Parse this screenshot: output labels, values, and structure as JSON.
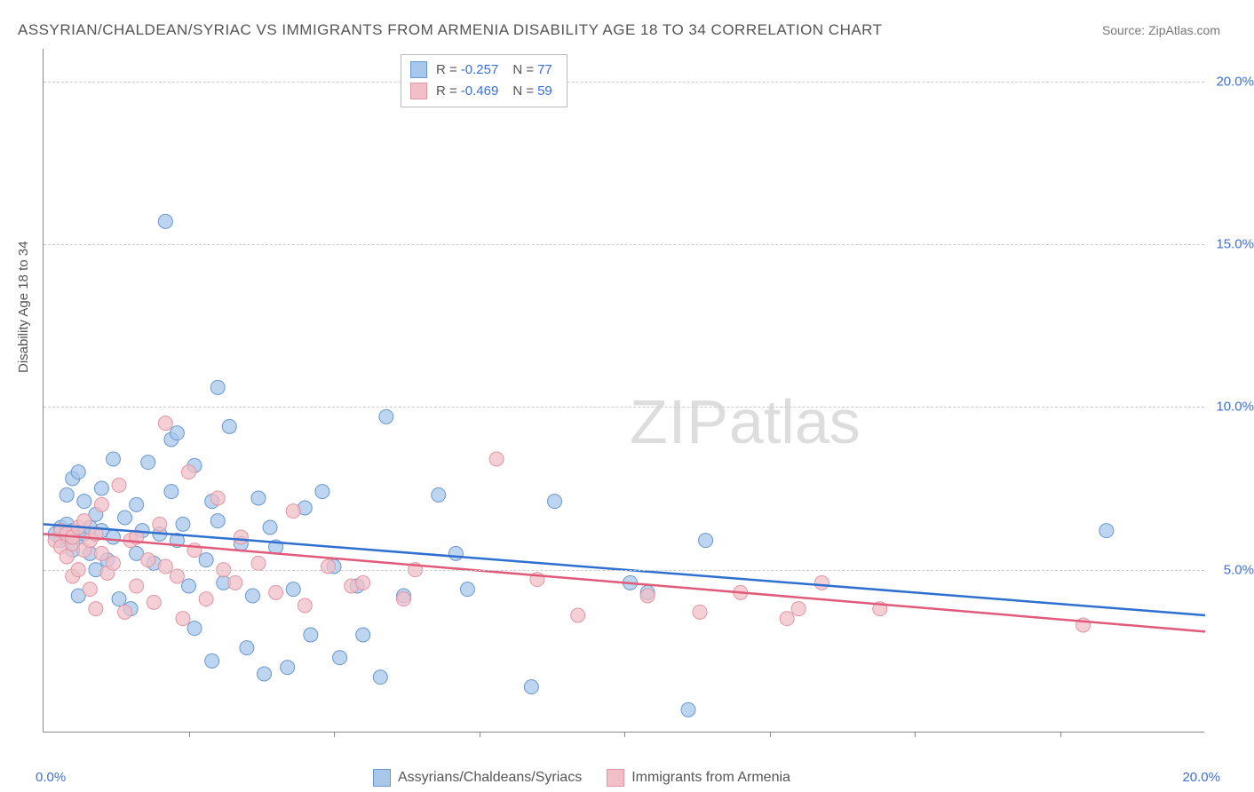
{
  "title": "ASSYRIAN/CHALDEAN/SYRIAC VS IMMIGRANTS FROM ARMENIA DISABILITY AGE 18 TO 34 CORRELATION CHART",
  "source_label": "Source:",
  "source_value": "ZipAtlas.com",
  "y_axis_label": "Disability Age 18 to 34",
  "watermark_a": "ZIP",
  "watermark_b": "atlas",
  "x_axis": {
    "min": 0,
    "max": 20,
    "left_label": "0.0%",
    "right_label": "20.0%"
  },
  "y_axis": {
    "min": 0,
    "max": 21
  },
  "y_gridlines": [
    {
      "value": 5,
      "label": "5.0%"
    },
    {
      "value": 10,
      "label": "10.0%"
    },
    {
      "value": 15,
      "label": "15.0%"
    },
    {
      "value": 20,
      "label": "20.0%"
    }
  ],
  "x_ticks": [
    2.5,
    5,
    7.5,
    10,
    12.5,
    15,
    17.5
  ],
  "series": [
    {
      "id": "assyrians",
      "name": "Assyrians/Chaldeans/Syriacs",
      "fill": "#a7c7eb",
      "stroke": "#6a98cc",
      "line_color": "#2e6fd0",
      "r_value": "-0.257",
      "n_value": "77",
      "trend": {
        "x1": 0,
        "y1": 6.4,
        "x2": 20,
        "y2": 3.6
      },
      "points": [
        [
          0.2,
          6.1
        ],
        [
          0.3,
          6.3
        ],
        [
          0.3,
          5.9
        ],
        [
          0.4,
          6.0
        ],
        [
          0.4,
          6.4
        ],
        [
          0.4,
          7.3
        ],
        [
          0.5,
          6.2
        ],
        [
          0.5,
          5.6
        ],
        [
          0.5,
          7.8
        ],
        [
          0.6,
          8.0
        ],
        [
          0.6,
          6.0
        ],
        [
          0.6,
          4.2
        ],
        [
          0.7,
          6.1
        ],
        [
          0.7,
          7.1
        ],
        [
          0.8,
          5.5
        ],
        [
          0.8,
          6.3
        ],
        [
          0.9,
          6.7
        ],
        [
          0.9,
          5.0
        ],
        [
          1.0,
          6.2
        ],
        [
          1.0,
          7.5
        ],
        [
          1.1,
          5.3
        ],
        [
          1.2,
          6.0
        ],
        [
          1.2,
          8.4
        ],
        [
          1.3,
          4.1
        ],
        [
          1.4,
          6.6
        ],
        [
          1.5,
          3.8
        ],
        [
          1.6,
          5.5
        ],
        [
          1.6,
          7.0
        ],
        [
          1.7,
          6.2
        ],
        [
          1.8,
          8.3
        ],
        [
          1.9,
          5.2
        ],
        [
          2.0,
          6.1
        ],
        [
          2.1,
          15.7
        ],
        [
          2.2,
          9.0
        ],
        [
          2.2,
          7.4
        ],
        [
          2.3,
          5.9
        ],
        [
          2.3,
          9.2
        ],
        [
          2.4,
          6.4
        ],
        [
          2.5,
          4.5
        ],
        [
          2.6,
          3.2
        ],
        [
          2.6,
          8.2
        ],
        [
          2.8,
          5.3
        ],
        [
          2.9,
          7.1
        ],
        [
          2.9,
          2.2
        ],
        [
          3.0,
          6.5
        ],
        [
          3.0,
          10.6
        ],
        [
          3.1,
          4.6
        ],
        [
          3.2,
          9.4
        ],
        [
          3.4,
          5.8
        ],
        [
          3.5,
          2.6
        ],
        [
          3.6,
          4.2
        ],
        [
          3.7,
          7.2
        ],
        [
          3.8,
          1.8
        ],
        [
          3.9,
          6.3
        ],
        [
          4.0,
          5.7
        ],
        [
          4.2,
          2.0
        ],
        [
          4.3,
          4.4
        ],
        [
          4.5,
          6.9
        ],
        [
          4.6,
          3.0
        ],
        [
          4.8,
          7.4
        ],
        [
          5.0,
          5.1
        ],
        [
          5.1,
          2.3
        ],
        [
          5.4,
          4.5
        ],
        [
          5.5,
          3.0
        ],
        [
          5.8,
          1.7
        ],
        [
          5.9,
          9.7
        ],
        [
          6.2,
          4.2
        ],
        [
          6.8,
          7.3
        ],
        [
          7.1,
          5.5
        ],
        [
          7.3,
          4.4
        ],
        [
          8.4,
          1.4
        ],
        [
          8.8,
          7.1
        ],
        [
          10.1,
          4.6
        ],
        [
          10.4,
          4.3
        ],
        [
          11.1,
          0.7
        ],
        [
          11.4,
          5.9
        ],
        [
          18.3,
          6.2
        ]
      ]
    },
    {
      "id": "armenia",
      "name": "Immigrants from Armenia",
      "fill": "#f2bfc8",
      "stroke": "#e096a3",
      "line_color": "#e05a7a",
      "r_value": "-0.469",
      "n_value": "59",
      "trend": {
        "x1": 0,
        "y1": 6.1,
        "x2": 20,
        "y2": 3.1
      },
      "points": [
        [
          0.2,
          5.9
        ],
        [
          0.3,
          5.7
        ],
        [
          0.3,
          6.2
        ],
        [
          0.4,
          5.4
        ],
        [
          0.4,
          6.1
        ],
        [
          0.5,
          5.8
        ],
        [
          0.5,
          6.0
        ],
        [
          0.5,
          4.8
        ],
        [
          0.6,
          6.3
        ],
        [
          0.6,
          5.0
        ],
        [
          0.7,
          5.6
        ],
        [
          0.7,
          6.5
        ],
        [
          0.8,
          4.4
        ],
        [
          0.8,
          5.9
        ],
        [
          0.9,
          6.1
        ],
        [
          0.9,
          3.8
        ],
        [
          1.0,
          5.5
        ],
        [
          1.0,
          7.0
        ],
        [
          1.1,
          4.9
        ],
        [
          1.2,
          5.2
        ],
        [
          1.3,
          7.6
        ],
        [
          1.4,
          3.7
        ],
        [
          1.5,
          5.9
        ],
        [
          1.6,
          4.5
        ],
        [
          1.6,
          6.0
        ],
        [
          1.8,
          5.3
        ],
        [
          1.9,
          4.0
        ],
        [
          2.0,
          6.4
        ],
        [
          2.1,
          5.1
        ],
        [
          2.1,
          9.5
        ],
        [
          2.3,
          4.8
        ],
        [
          2.4,
          3.5
        ],
        [
          2.5,
          8.0
        ],
        [
          2.6,
          5.6
        ],
        [
          2.8,
          4.1
        ],
        [
          3.0,
          7.2
        ],
        [
          3.1,
          5.0
        ],
        [
          3.3,
          4.6
        ],
        [
          3.4,
          6.0
        ],
        [
          3.7,
          5.2
        ],
        [
          4.0,
          4.3
        ],
        [
          4.3,
          6.8
        ],
        [
          4.5,
          3.9
        ],
        [
          4.9,
          5.1
        ],
        [
          5.3,
          4.5
        ],
        [
          5.5,
          4.6
        ],
        [
          6.2,
          4.1
        ],
        [
          6.4,
          5.0
        ],
        [
          7.8,
          8.4
        ],
        [
          8.5,
          4.7
        ],
        [
          9.2,
          3.6
        ],
        [
          10.4,
          4.2
        ],
        [
          11.3,
          3.7
        ],
        [
          12.0,
          4.3
        ],
        [
          12.8,
          3.5
        ],
        [
          13.4,
          4.6
        ],
        [
          14.4,
          3.8
        ],
        [
          17.9,
          3.3
        ],
        [
          13.0,
          3.8
        ]
      ]
    }
  ],
  "bottom_legend": [
    {
      "series": "assyrians"
    },
    {
      "series": "armenia"
    }
  ],
  "marker_radius": 8,
  "trend_line_width": 2.5
}
